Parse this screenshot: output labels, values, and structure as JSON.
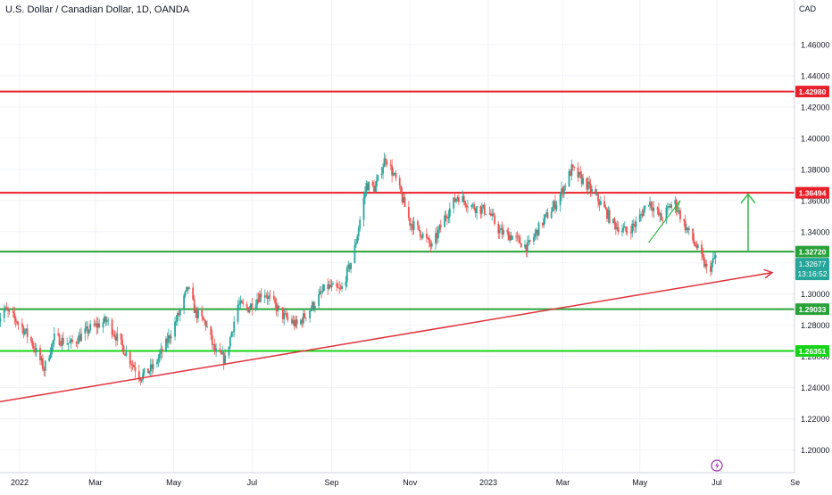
{
  "header": {
    "title": "U.S. Dollar / Canadian Dollar, 1D, OANDA"
  },
  "axis": {
    "currency": "CAD"
  },
  "colors": {
    "up": "#26a69a",
    "down": "#ef5350",
    "grid": "#f0f3fa",
    "axis_text": "#131722",
    "red_level": "#e8202a",
    "green_level": "#2aa23a",
    "bright_green": "#18d418",
    "trend": "#e0323c",
    "arrow": "#34b84a",
    "current": "#26a69a"
  },
  "icons": {
    "replay": "lightning-icon"
  },
  "chart_data": {
    "type": "candlestick",
    "symbol": "USDCAD",
    "yticks": [
      "1.46000",
      "1.44000",
      "1.42000",
      "1.40000",
      "1.38000",
      "1.36000",
      "1.34000",
      "1.32000",
      "1.30000",
      "1.28000",
      "1.26000",
      "1.24000",
      "1.22000",
      "1.20000"
    ],
    "ylim": [
      1.1855,
      1.4885
    ],
    "xticks": [
      "2022",
      "Mar",
      "May",
      "Jul",
      "Sep",
      "Nov",
      "2023",
      "Mar",
      "May",
      "Jul",
      "Se"
    ],
    "levels": [
      {
        "value": 1.4298,
        "label": "1.42980",
        "color": "red"
      },
      {
        "value": 1.36494,
        "label": "1.36494",
        "color": "red"
      },
      {
        "value": 1.3272,
        "label": "1.32720",
        "color": "green"
      },
      {
        "value": 1.29033,
        "label": "1.29033",
        "color": "green"
      },
      {
        "value": 1.26351,
        "label": "1.26351",
        "color": "bright_green"
      }
    ],
    "current": {
      "price": "1.32677",
      "countdown": "13:16:52"
    },
    "trendline": {
      "from": [
        "Dec 2021",
        1.231
      ],
      "to": [
        "Jul 2023",
        1.3138
      ]
    },
    "path": [
      [
        "2021-12-15",
        1.283
      ],
      [
        "2021-12-20",
        1.29
      ],
      [
        "2022-01-01",
        1.281
      ],
      [
        "2022-01-10",
        1.27
      ],
      [
        "2022-01-20",
        1.252
      ],
      [
        "2022-01-28",
        1.272
      ],
      [
        "2022-02-10",
        1.268
      ],
      [
        "2022-02-25",
        1.278
      ],
      [
        "2022-03-10",
        1.283
      ],
      [
        "2022-03-25",
        1.262
      ],
      [
        "2022-04-05",
        1.247
      ],
      [
        "2022-04-15",
        1.253
      ],
      [
        "2022-04-25",
        1.268
      ],
      [
        "2022-05-05",
        1.287
      ],
      [
        "2022-05-12",
        1.304
      ],
      [
        "2022-05-18",
        1.288
      ],
      [
        "2022-05-26",
        1.281
      ],
      [
        "2022-06-02",
        1.263
      ],
      [
        "2022-06-10",
        1.258
      ],
      [
        "2022-06-20",
        1.293
      ],
      [
        "2022-06-28",
        1.291
      ],
      [
        "2022-07-10",
        1.302
      ],
      [
        "2022-07-25",
        1.286
      ],
      [
        "2022-08-05",
        1.28
      ],
      [
        "2022-08-15",
        1.29
      ],
      [
        "2022-08-28",
        1.305
      ],
      [
        "2022-09-08",
        1.302
      ],
      [
        "2022-09-18",
        1.325
      ],
      [
        "2022-09-28",
        1.37
      ],
      [
        "2022-10-05",
        1.368
      ],
      [
        "2022-10-13",
        1.388
      ],
      [
        "2022-10-22",
        1.371
      ],
      [
        "2022-11-01",
        1.346
      ],
      [
        "2022-11-08",
        1.341
      ],
      [
        "2022-11-18",
        1.33
      ],
      [
        "2022-11-28",
        1.349
      ],
      [
        "2022-12-08",
        1.363
      ],
      [
        "2022-12-20",
        1.356
      ],
      [
        "2023-01-01",
        1.353
      ],
      [
        "2023-01-10",
        1.34
      ],
      [
        "2023-01-20",
        1.337
      ],
      [
        "2023-02-01",
        1.33
      ],
      [
        "2023-02-12",
        1.345
      ],
      [
        "2023-02-25",
        1.36
      ],
      [
        "2023-03-08",
        1.38
      ],
      [
        "2023-03-20",
        1.37
      ],
      [
        "2023-04-01",
        1.357
      ],
      [
        "2023-04-10",
        1.345
      ],
      [
        "2023-04-20",
        1.34
      ],
      [
        "2023-04-28",
        1.345
      ],
      [
        "2023-05-08",
        1.36
      ],
      [
        "2023-05-18",
        1.348
      ],
      [
        "2023-05-28",
        1.36
      ],
      [
        "2023-06-05",
        1.345
      ],
      [
        "2023-06-15",
        1.33
      ],
      [
        "2023-06-24",
        1.314
      ],
      [
        "2023-07-01",
        1.326
      ]
    ]
  }
}
